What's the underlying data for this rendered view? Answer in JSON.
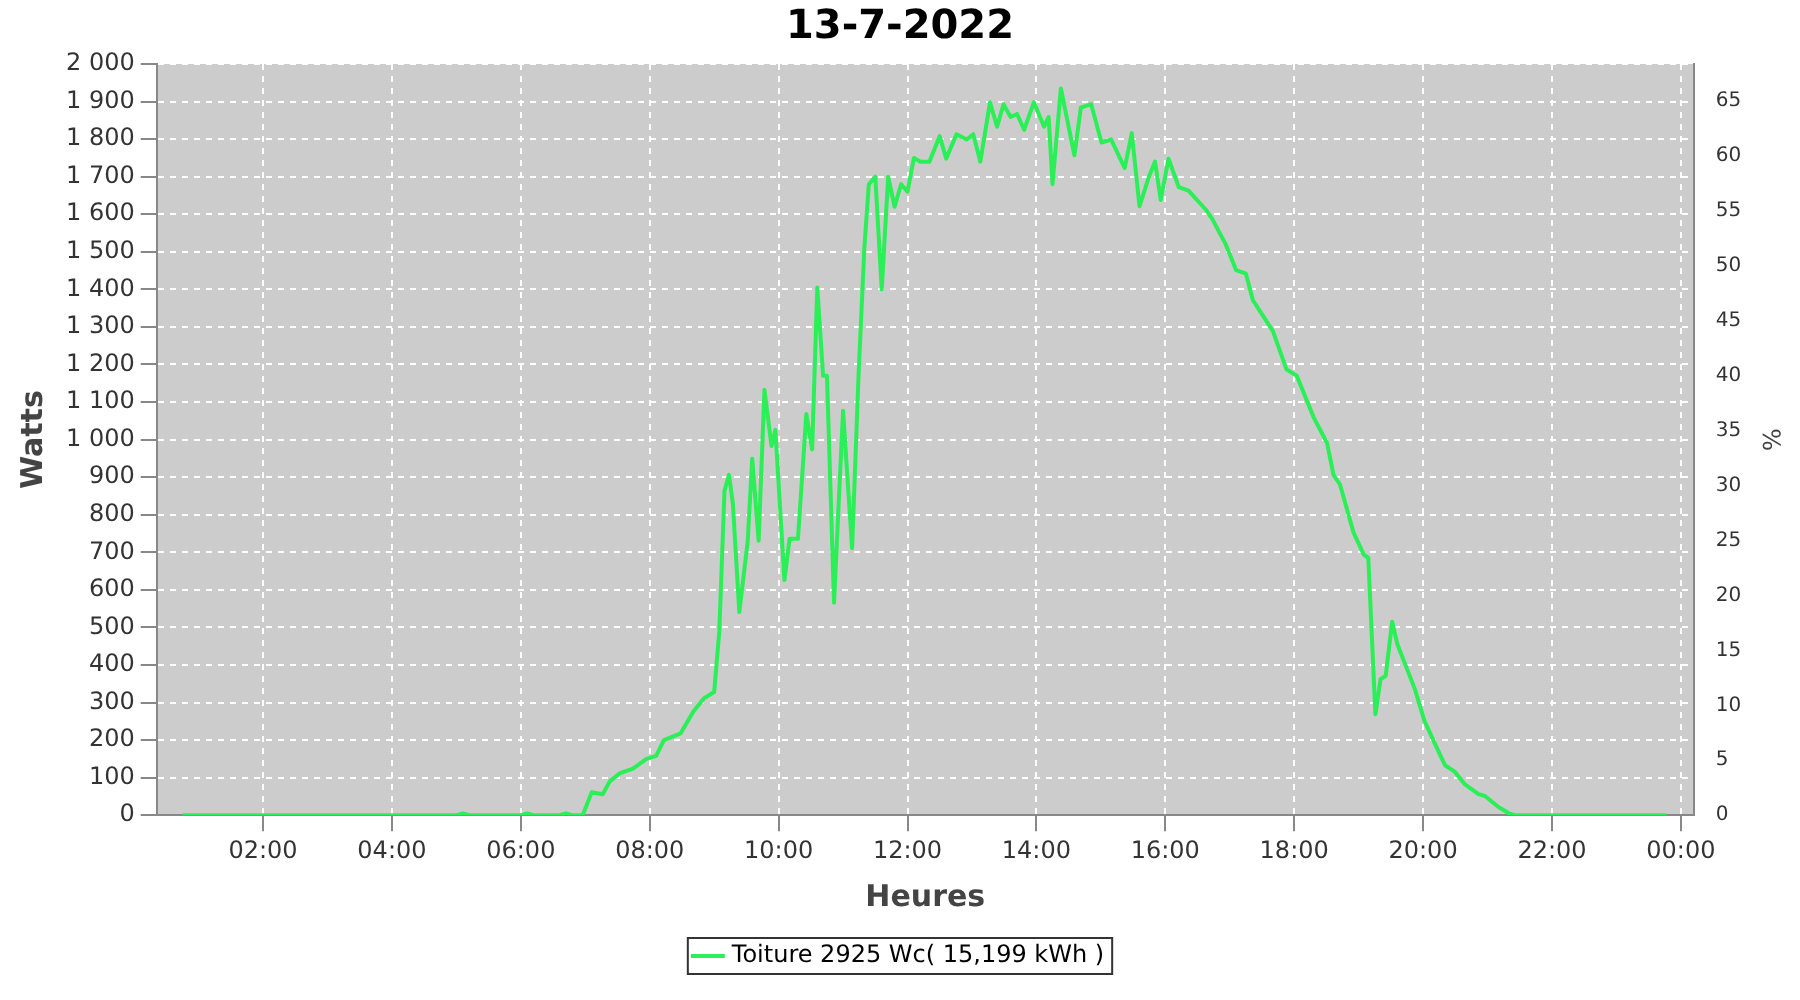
{
  "chart_data": {
    "type": "line",
    "title": "13-7-2022",
    "xlabel": "Heures",
    "ylabel": "Watts",
    "y2label": "%",
    "xlim": [
      0.35,
      24.2
    ],
    "xticks": [
      {
        "value": 2,
        "label": "02:00"
      },
      {
        "value": 4,
        "label": "04:00"
      },
      {
        "value": 6,
        "label": "06:00"
      },
      {
        "value": 8,
        "label": "08:00"
      },
      {
        "value": 10,
        "label": "10:00"
      },
      {
        "value": 12,
        "label": "12:00"
      },
      {
        "value": 14,
        "label": "14:00"
      },
      {
        "value": 16,
        "label": "16:00"
      },
      {
        "value": 18,
        "label": "18:00"
      },
      {
        "value": 20,
        "label": "20:00"
      },
      {
        "value": 22,
        "label": "22:00"
      },
      {
        "value": 24,
        "label": "00:00"
      }
    ],
    "ylim": [
      0,
      2000
    ],
    "yticks": [
      0,
      100,
      200,
      300,
      400,
      500,
      600,
      700,
      800,
      900,
      {
        "value": 1000,
        "label": "1 000"
      },
      {
        "value": 1100,
        "label": "1 100"
      },
      {
        "value": 1200,
        "label": "1 200"
      },
      {
        "value": 1300,
        "label": "1 300"
      },
      {
        "value": 1400,
        "label": "1 400"
      },
      {
        "value": 1500,
        "label": "1 500"
      },
      {
        "value": 1600,
        "label": "1 600"
      },
      {
        "value": 1700,
        "label": "1 700"
      },
      {
        "value": 1800,
        "label": "1 800"
      },
      {
        "value": 1900,
        "label": "1 900"
      },
      {
        "value": 2000,
        "label": "2 000"
      }
    ],
    "y2lim": [
      0,
      68.38
    ],
    "y2ticks": [
      0,
      5,
      10,
      15,
      20,
      25,
      30,
      35,
      40,
      45,
      50,
      55,
      60,
      65
    ],
    "grid": true,
    "legend": "bottom",
    "marker": "none",
    "line_style": "solid",
    "series": [
      {
        "name": "Toiture 2925 Wc( 15,199 kWh )",
        "color": "#2bef57",
        "x": [
          0.75,
          5.0,
          5.1,
          5.2,
          6.0,
          6.1,
          6.2,
          6.6,
          6.7,
          6.8,
          6.96,
          7.1,
          7.27,
          7.38,
          7.54,
          7.74,
          7.95,
          8.1,
          8.22,
          8.48,
          8.68,
          8.84,
          9.0,
          9.08,
          9.16,
          9.23,
          9.29,
          9.39,
          9.52,
          9.59,
          9.69,
          9.78,
          9.89,
          9.95,
          10.09,
          10.17,
          10.3,
          10.43,
          10.52,
          10.6,
          10.69,
          10.75,
          10.86,
          11.0,
          11.14,
          11.24,
          11.33,
          11.4,
          11.5,
          11.6,
          11.7,
          11.8,
          11.9,
          12.0,
          12.1,
          12.2,
          12.34,
          12.5,
          12.6,
          12.76,
          12.92,
          13.02,
          13.13,
          13.28,
          13.39,
          13.49,
          13.6,
          13.7,
          13.81,
          13.96,
          14.12,
          14.19,
          14.25,
          14.38,
          14.48,
          14.59,
          14.69,
          14.85,
          15.01,
          15.16,
          15.37,
          15.48,
          15.6,
          15.74,
          15.84,
          15.93,
          16.05,
          16.21,
          16.36,
          16.63,
          16.73,
          16.94,
          17.1,
          17.25,
          17.36,
          17.67,
          17.88,
          18.04,
          18.3,
          18.51,
          18.61,
          18.71,
          18.92,
          19.08,
          19.15,
          19.26,
          19.34,
          19.42,
          19.52,
          19.6,
          19.87,
          20.02,
          20.18,
          20.34,
          20.49,
          20.65,
          20.86,
          20.96,
          21.17,
          21.33,
          21.43,
          23.78
        ],
        "values": [
          0,
          0,
          5,
          0,
          0,
          5,
          0,
          0,
          5,
          0,
          0,
          61,
          56,
          90,
          112,
          124,
          150,
          158,
          200,
          218,
          277,
          311,
          328,
          490,
          864,
          906,
          830,
          541,
          728,
          949,
          731,
          1133,
          983,
          1026,
          626,
          736,
          736,
          1068,
          974,
          1405,
          1170,
          1170,
          566,
          1077,
          711,
          1170,
          1510,
          1680,
          1700,
          1400,
          1700,
          1620,
          1680,
          1660,
          1750,
          1740,
          1740,
          1808,
          1748,
          1813,
          1799,
          1813,
          1740,
          1898,
          1833,
          1893,
          1859,
          1867,
          1825,
          1898,
          1833,
          1859,
          1680,
          1935,
          1850,
          1757,
          1884,
          1893,
          1791,
          1799,
          1723,
          1816,
          1621,
          1697,
          1740,
          1638,
          1748,
          1672,
          1663,
          1612,
          1587,
          1519,
          1451,
          1442,
          1371,
          1289,
          1187,
          1170,
          1060,
          991,
          906,
          881,
          753,
          694,
          685,
          269,
          362,
          371,
          515,
          456,
          337,
          252,
          192,
          133,
          116,
          82,
          56,
          51,
          22,
          5,
          0,
          0
        ]
      }
    ]
  }
}
